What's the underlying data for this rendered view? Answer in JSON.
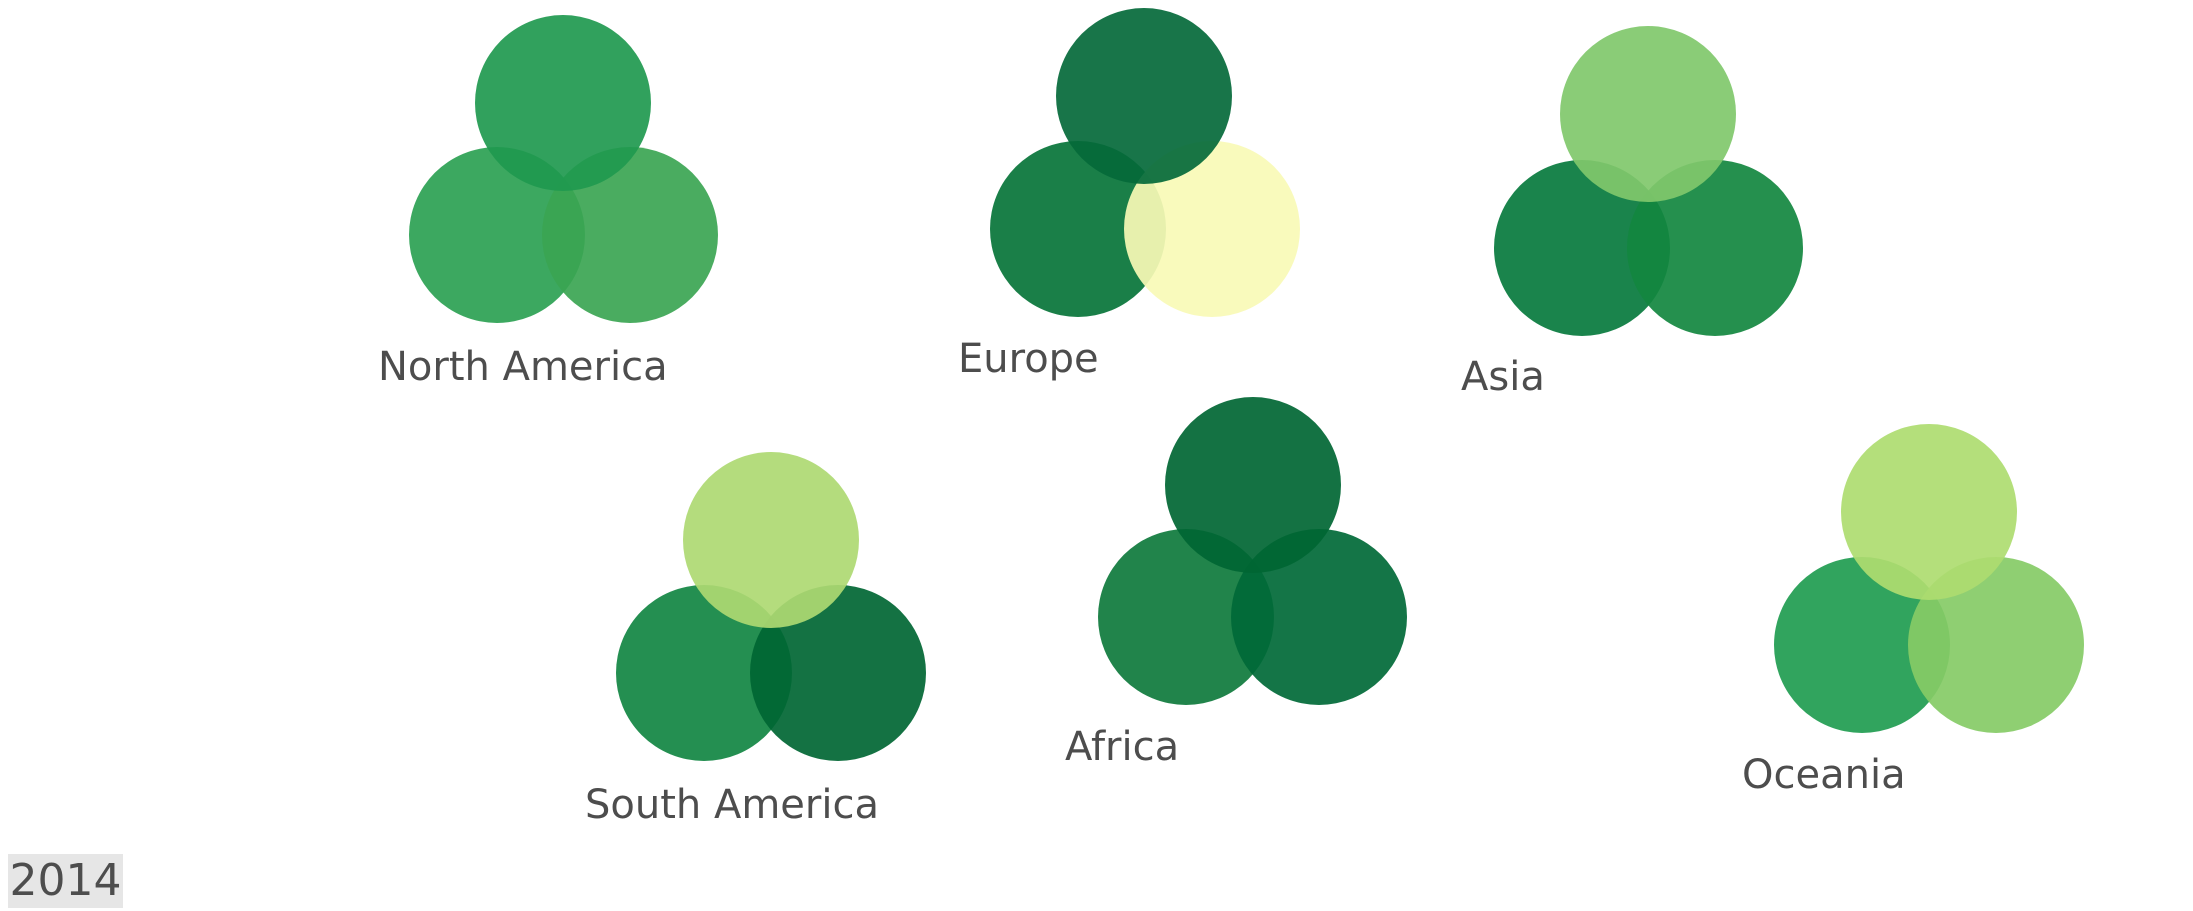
{
  "chart_data": {
    "type": "bubble-cluster",
    "year": "2014",
    "groups": [
      {
        "label": "North America",
        "colors": [
          "#1f994f",
          "#2ba152",
          "#3ba552"
        ]
      },
      {
        "label": "Europe",
        "colors": [
          "#04693a",
          "#077438",
          "#f9fab6"
        ]
      },
      {
        "label": "Asia",
        "colors": [
          "#80c86b",
          "#077a3d",
          "#12873f"
        ]
      },
      {
        "label": "South America",
        "colors": [
          "#aed972",
          "#118642",
          "#006633"
        ]
      },
      {
        "label": "Africa",
        "colors": [
          "#006633",
          "#0e7a3c",
          "#006937"
        ]
      },
      {
        "label": "Oceania",
        "colors": [
          "#aedc70",
          "#209c50",
          "#85cb66"
        ]
      }
    ]
  }
}
